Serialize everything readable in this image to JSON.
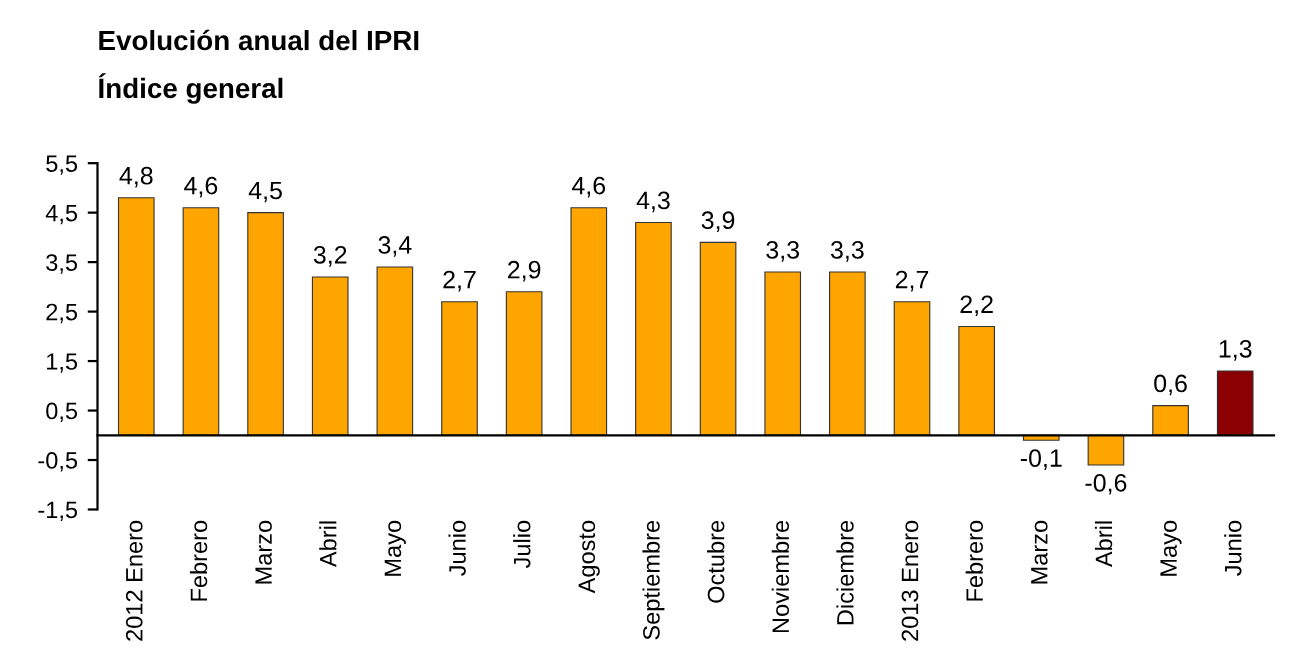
{
  "chart_data": {
    "type": "bar",
    "title": "Evolución anual del IPRI",
    "subtitle": "Índice general",
    "categories": [
      "2012 Enero",
      "Febrero",
      "Marzo",
      "Abril",
      "Mayo",
      "Junio",
      "Julio",
      "Agosto",
      "Septiembre",
      "Octubre",
      "Noviembre",
      "Diciembre",
      "2013 Enero",
      "Febrero",
      "Marzo",
      "Abril",
      "Mayo",
      "Junio"
    ],
    "values": [
      4.8,
      4.6,
      4.5,
      3.2,
      3.4,
      2.7,
      2.9,
      4.6,
      4.3,
      3.9,
      3.3,
      3.3,
      2.7,
      2.2,
      -0.1,
      -0.6,
      0.6,
      1.3
    ],
    "value_labels": [
      "4,8",
      "4,6",
      "4,5",
      "3,2",
      "3,4",
      "2,7",
      "2,9",
      "4,6",
      "4,3",
      "3,9",
      "3,3",
      "3,3",
      "2,7",
      "2,2",
      "-0,1",
      "-0,6",
      "0,6",
      "1,3"
    ],
    "colors": [
      "#ffa500",
      "#ffa500",
      "#ffa500",
      "#ffa500",
      "#ffa500",
      "#ffa500",
      "#ffa500",
      "#ffa500",
      "#ffa500",
      "#ffa500",
      "#ffa500",
      "#ffa500",
      "#ffa500",
      "#ffa500",
      "#ffa500",
      "#ffa500",
      "#ffa500",
      "#8b0000"
    ],
    "ylim": [
      -1.5,
      5.5
    ],
    "yticks": [
      {
        "value": -1.5,
        "label": "-1,5"
      },
      {
        "value": -0.5,
        "label": "-0,5"
      },
      {
        "value": 0.5,
        "label": "0,5"
      },
      {
        "value": 1.5,
        "label": "1,5"
      },
      {
        "value": 2.5,
        "label": "2,5"
      },
      {
        "value": 3.5,
        "label": "3,5"
      },
      {
        "value": 4.5,
        "label": "4,5"
      },
      {
        "value": 5.5,
        "label": "5,5"
      }
    ],
    "grid": false,
    "legend": false
  }
}
